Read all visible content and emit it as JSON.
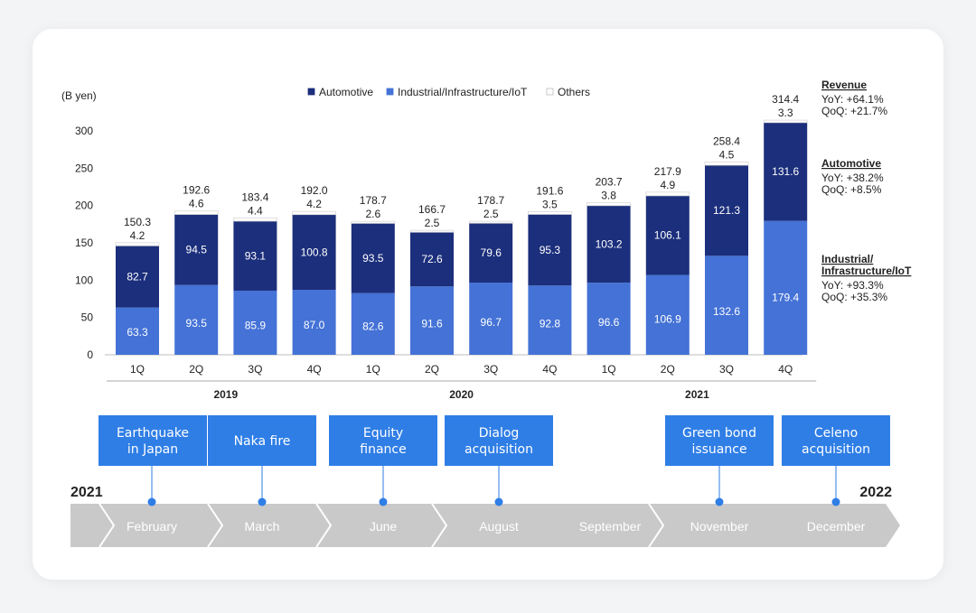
{
  "colors": {
    "automotive": "#1c2f7c",
    "industrial": "#4472d6",
    "others": "#ffffff",
    "event_box": "#2f7ee6",
    "arrow": "#c9c9c9",
    "text": "#222222"
  },
  "chart_data": {
    "type": "bar",
    "stacked": true,
    "ylabel": "(B yen)",
    "ylim": [
      0,
      300
    ],
    "yticks": [
      0,
      50,
      100,
      150,
      200,
      250,
      300
    ],
    "grid": false,
    "legend_position": "top",
    "categories": [
      "1Q",
      "2Q",
      "3Q",
      "4Q",
      "1Q",
      "2Q",
      "3Q",
      "4Q",
      "1Q",
      "2Q",
      "3Q",
      "4Q"
    ],
    "years": [
      {
        "label": "2019",
        "start": 0,
        "end": 3
      },
      {
        "label": "2020",
        "start": 4,
        "end": 7
      },
      {
        "label": "2021",
        "start": 8,
        "end": 11
      }
    ],
    "series": [
      {
        "name": "Industrial/Infrastructure/IoT",
        "values": [
          63.3,
          93.5,
          85.9,
          87.0,
          82.6,
          91.6,
          96.7,
          92.8,
          96.6,
          106.9,
          132.6,
          179.4
        ],
        "labels": [
          "63.3",
          "93.5",
          "85.9",
          "87.0",
          "82.6",
          "91.6",
          "96.7",
          "92.8",
          "96.6",
          "106.9",
          "132.6",
          "179.4"
        ]
      },
      {
        "name": "Automotive",
        "values": [
          82.7,
          94.5,
          93.1,
          100.8,
          93.5,
          72.6,
          79.6,
          95.3,
          103.2,
          106.1,
          121.3,
          131.6
        ],
        "labels": [
          "82.7",
          "94.5",
          "93.1",
          "100.8",
          "93.5",
          "72.6",
          "79.6",
          "95.3",
          "103.2",
          "106.1",
          "121.3",
          "131.6"
        ]
      },
      {
        "name": "Others",
        "values": [
          4.2,
          4.6,
          4.4,
          4.2,
          2.6,
          2.5,
          2.5,
          3.5,
          3.8,
          4.9,
          4.5,
          3.3
        ],
        "labels": [
          "4.2",
          "4.6",
          "4.4",
          "4.2",
          "2.6",
          "2.5",
          "2.5",
          "3.5",
          "3.8",
          "4.9",
          "4.5",
          "3.3"
        ]
      }
    ],
    "totals": [
      "150.3",
      "192.6",
      "183.4",
      "192.0",
      "178.7",
      "166.7",
      "178.7",
      "191.6",
      "203.7",
      "217.9",
      "258.4",
      "314.4"
    ],
    "legend": [
      "Automotive",
      "Industrial/Infrastructure/IoT",
      "Others"
    ]
  },
  "side_notes": [
    {
      "title": "Revenue",
      "lines": [
        "YoY: +64.1%",
        "QoQ: +21.7%"
      ]
    },
    {
      "title": "Automotive",
      "lines": [
        "YoY: +38.2%",
        "QoQ: +8.5%"
      ]
    },
    {
      "title": "Industrial/\nInfrastructure/IoT",
      "lines": [
        "YoY: +93.3%",
        "QoQ: +35.3%"
      ]
    }
  ],
  "timeline": {
    "start_year": "2021",
    "end_year": "2022",
    "months": [
      "February",
      "March",
      "June",
      "August",
      "September",
      "November",
      "December"
    ],
    "events": [
      {
        "month": "February",
        "label": "Earthquake\nin Japan"
      },
      {
        "month": "March",
        "label": "Naka fire"
      },
      {
        "month": "June",
        "label": "Equity\nfinance"
      },
      {
        "month": "August",
        "label": "Dialog\nacquisition"
      },
      {
        "month": "November",
        "label": "Green bond\nissuance"
      },
      {
        "month": "December",
        "label": "Celeno\nacquisition"
      }
    ]
  }
}
